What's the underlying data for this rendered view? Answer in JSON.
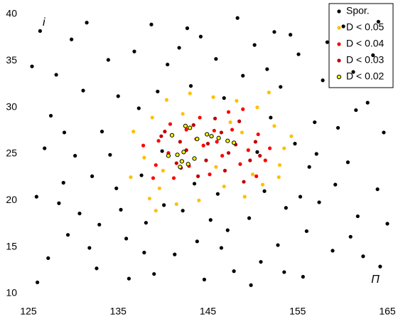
{
  "chart_data": {
    "type": "scatter",
    "x_label": "Π",
    "y_label": "i",
    "xlim": [
      125,
      165
    ],
    "ylim": [
      10,
      40
    ],
    "xticks": [
      125,
      135,
      145,
      155,
      165
    ],
    "yticks": [
      10,
      15,
      20,
      25,
      30,
      35,
      40
    ],
    "grid": false,
    "legend": "top-right",
    "series": [
      {
        "name": "Spor.",
        "color": "#000000",
        "x": [
          126.3,
          128.1,
          131.5,
          133.2,
          136.8,
          139.4,
          142.7,
          145.9,
          148.3,
          151.6,
          154.2,
          157.8,
          160.1,
          163.4,
          127.5,
          130.2,
          134.8,
          138.1,
          141.3,
          144.6,
          147.2,
          150.9,
          153.7,
          156.3,
          159.5,
          162.8,
          125.9,
          129.4,
          132.6,
          135.9,
          139.0,
          142.2,
          146.1,
          149.6,
          152.8,
          155.6,
          158.9,
          161.7,
          164.2,
          126.8,
          128.9,
          131.1,
          133.9,
          137.3,
          140.5,
          143.1,
          146.8,
          150.2,
          153.1,
          156.9,
          160.6,
          163.9,
          127.2,
          130.7,
          134.1,
          137.6,
          140.1,
          143.8,
          147.9,
          151.3,
          154.7,
          157.4,
          160.9,
          164.6,
          125.4,
          129.8,
          132.1,
          135.3,
          138.7,
          141.8,
          144.2,
          148.9,
          152.4,
          155.1,
          158.3,
          161.2,
          164.0,
          126.0,
          129.0,
          132.9,
          136.2,
          139.9,
          143.5,
          146.5,
          149.8,
          153.5,
          156.0,
          159.2,
          162.3,
          165.0,
          131.8,
          135.0,
          152.0,
          157.1,
          161.5,
          128.4,
          137.9,
          150.5,
          155.3,
          145.3
        ],
        "y": [
          38.2,
          33.5,
          39.1,
          27.4,
          36.0,
          31.7,
          38.5,
          35.2,
          39.6,
          34.1,
          37.8,
          32.9,
          38.7,
          35.6,
          29.1,
          24.8,
          21.3,
          17.6,
          14.2,
          11.5,
          16.8,
          13.4,
          19.2,
          23.6,
          27.8,
          30.5,
          20.4,
          16.3,
          12.7,
          15.9,
          12.1,
          18.9,
          20.7,
          18.1,
          15.2,
          11.8,
          14.6,
          18.3,
          12.9,
          25.6,
          21.9,
          31.8,
          35.1,
          29.9,
          34.6,
          32.3,
          31.0,
          36.7,
          32.2,
          28.4,
          24.1,
          21.2,
          13.8,
          18.6,
          24.9,
          22.7,
          19.5,
          15.6,
          12.4,
          21.0,
          26.1,
          19.8,
          16.1,
          27.3,
          34.4,
          37.3,
          22.6,
          19.0,
          38.9,
          36.4,
          37.6,
          33.4,
          38.1,
          35.7,
          37.0,
          33.8,
          39.2,
          11.2,
          27.3,
          17.4,
          11.6,
          25.3,
          21.8,
          14.9,
          10.9,
          12.3,
          16.7,
          21.7,
          14.0,
          17.5,
          14.9,
          31.2,
          28.9,
          25.0,
          29.7,
          19.7,
          14.4,
          25.2,
          20.4,
          17.9
        ]
      },
      {
        "name": "D < 0.05",
        "color": "#ffc000",
        "x": [
          138.5,
          137.9,
          138.8,
          140.4,
          143.0,
          145.6,
          148.2,
          150.5,
          152.4,
          153.5,
          152.9,
          151.1,
          149.1,
          146.8,
          144.0,
          141.5,
          139.6,
          136.7,
          154.3,
          151.8,
          142.2,
          147.5,
          140.0,
          150.0,
          141.0,
          148.8,
          136.4,
          153.0,
          139.2,
          145.9
        ],
        "y": [
          20.2,
          24.6,
          28.9,
          30.8,
          31.5,
          31.1,
          30.7,
          30.0,
          28.0,
          25.6,
          22.5,
          21.7,
          20.4,
          21.5,
          20.0,
          19.6,
          21.3,
          27.4,
          26.9,
          31.6,
          29.3,
          28.4,
          23.2,
          22.8,
          27.0,
          27.3,
          22.5,
          23.8,
          18.9,
          23.6
        ]
      },
      {
        "name": "D < 0.04",
        "color": "#ff0000",
        "x": [
          139.5,
          140.8,
          142.6,
          144.1,
          145.7,
          147.3,
          148.9,
          150.6,
          151.4,
          150.4,
          148.6,
          146.6,
          144.5,
          142.9,
          141.2,
          139.2,
          137.8,
          146.0,
          149.5,
          140.6,
          143.7,
          147.7,
          151.9,
          138.9,
          145.2
        ],
        "y": [
          26.4,
          28.2,
          27.6,
          28.9,
          27.5,
          29.5,
          29.8,
          27.1,
          24.3,
          22.6,
          23.9,
          24.8,
          25.9,
          23.7,
          22.4,
          23.8,
          25.9,
          26.3,
          25.4,
          25.1,
          26.6,
          27.6,
          25.6,
          22.4,
          22.8
        ]
      },
      {
        "name": "D < 0.03",
        "color": "#c00000",
        "x": [
          141.9,
          143.4,
          145.0,
          146.5,
          148.1,
          149.7,
          149.0,
          146.9,
          144.8,
          142.6,
          141.5,
          140.2,
          147.3,
          150.3,
          143.9,
          148.5,
          142.0,
          139.8,
          145.8,
          150.8
        ],
        "y": [
          26.3,
          28.1,
          26.1,
          27.3,
          26.0,
          24.3,
          22.0,
          23.2,
          24.3,
          25.4,
          24.0,
          27.4,
          25.1,
          26.3,
          22.6,
          28.5,
          23.5,
          26.9,
          28.8,
          24.8
        ]
      },
      {
        "name": "D < 0.02",
        "color": "#ffff00",
        "x": [
          141.6,
          142.1,
          142.8,
          142.3,
          141.9,
          143.5,
          144.9,
          146.2,
          147.2,
          145.4,
          143.0,
          141.0,
          147.9,
          140.6,
          142.5,
          143.8
        ],
        "y": [
          24.9,
          24.2,
          23.9,
          25.2,
          23.6,
          24.5,
          27.1,
          26.7,
          26.4,
          26.9,
          27.8,
          27.0,
          26.2,
          24.8,
          28.0,
          26.6
        ]
      }
    ]
  }
}
